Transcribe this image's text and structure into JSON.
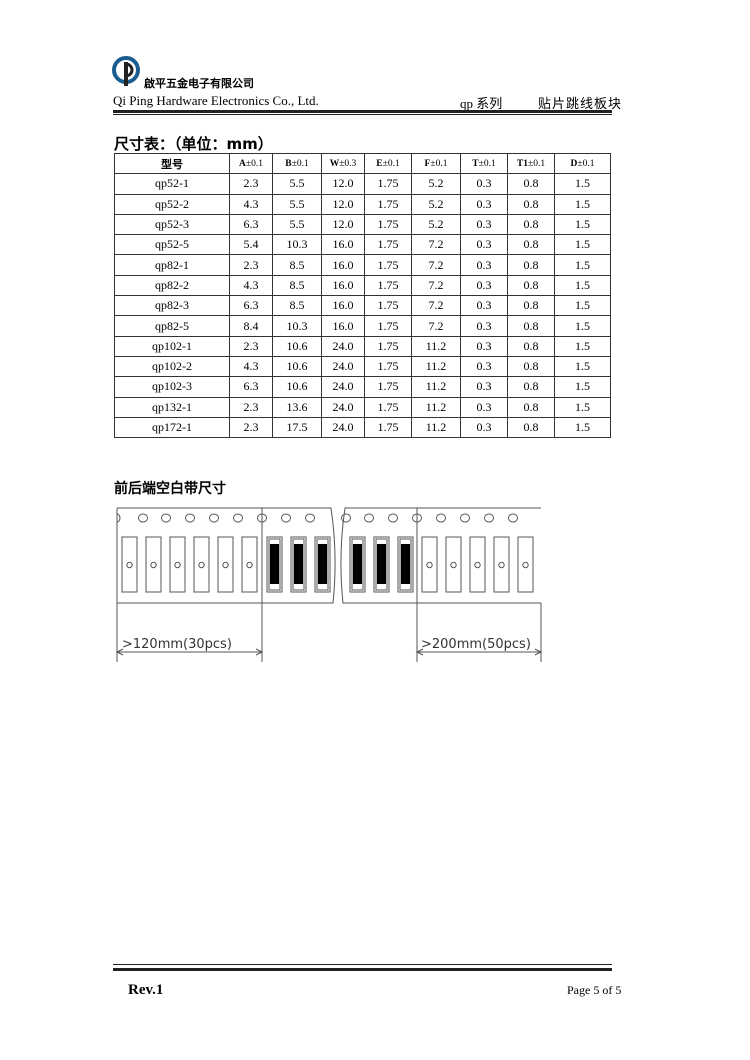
{
  "header": {
    "company_cn": "啟平五金电子有限公司",
    "company_en": "Qi Ping Hardware Electronics Co., Ltd.",
    "series": "qp 系列",
    "product": "贴片跳线板块"
  },
  "dimension_table": {
    "title": "尺寸表：（单位：mm）",
    "columns": [
      {
        "key": "型号",
        "tol": ""
      },
      {
        "key": "A",
        "tol": "±0.1"
      },
      {
        "key": "B",
        "tol": "±0.1"
      },
      {
        "key": "W",
        "tol": "±0.3"
      },
      {
        "key": "E",
        "tol": "±0.1"
      },
      {
        "key": "F",
        "tol": "±0.1"
      },
      {
        "key": "T",
        "tol": "±0.1"
      },
      {
        "key": "T1",
        "tol": "±0.1"
      },
      {
        "key": "D",
        "tol": "±0.1"
      }
    ],
    "rows": [
      [
        "qp52-1",
        "2.3",
        "5.5",
        "12.0",
        "1.75",
        "5.2",
        "0.3",
        "0.8",
        "1.5"
      ],
      [
        "qp52-2",
        "4.3",
        "5.5",
        "12.0",
        "1.75",
        "5.2",
        "0.3",
        "0.8",
        "1.5"
      ],
      [
        "qp52-3",
        "6.3",
        "5.5",
        "12.0",
        "1.75",
        "5.2",
        "0.3",
        "0.8",
        "1.5"
      ],
      [
        "qp52-5",
        "5.4",
        "10.3",
        "16.0",
        "1.75",
        "7.2",
        "0.3",
        "0.8",
        "1.5"
      ],
      [
        "qp82-1",
        "2.3",
        "8.5",
        "16.0",
        "1.75",
        "7.2",
        "0.3",
        "0.8",
        "1.5"
      ],
      [
        "qp82-2",
        "4.3",
        "8.5",
        "16.0",
        "1.75",
        "7.2",
        "0.3",
        "0.8",
        "1.5"
      ],
      [
        "qp82-3",
        "6.3",
        "8.5",
        "16.0",
        "1.75",
        "7.2",
        "0.3",
        "0.8",
        "1.5"
      ],
      [
        "qp82-5",
        "8.4",
        "10.3",
        "16.0",
        "1.75",
        "7.2",
        "0.3",
        "0.8",
        "1.5"
      ],
      [
        "qp102-1",
        "2.3",
        "10.6",
        "24.0",
        "1.75",
        "11.2",
        "0.3",
        "0.8",
        "1.5"
      ],
      [
        "qp102-2",
        "4.3",
        "10.6",
        "24.0",
        "1.75",
        "11.2",
        "0.3",
        "0.8",
        "1.5"
      ],
      [
        "qp102-3",
        "6.3",
        "10.6",
        "24.0",
        "1.75",
        "11.2",
        "0.3",
        "0.8",
        "1.5"
      ],
      [
        "qp132-1",
        "2.3",
        "13.6",
        "24.0",
        "1.75",
        "11.2",
        "0.3",
        "0.8",
        "1.5"
      ],
      [
        "qp172-1",
        "2.3",
        "17.5",
        "24.0",
        "1.75",
        "11.2",
        "0.3",
        "0.8",
        "1.5"
      ]
    ]
  },
  "tape_diagram": {
    "title": "前后端空白带尺寸",
    "leader_label": ">120mm(30pcs)",
    "trailer_label": ">200mm(50pcs)"
  },
  "footer": {
    "revision": "Rev.1",
    "page": "Page 5 of 5"
  }
}
